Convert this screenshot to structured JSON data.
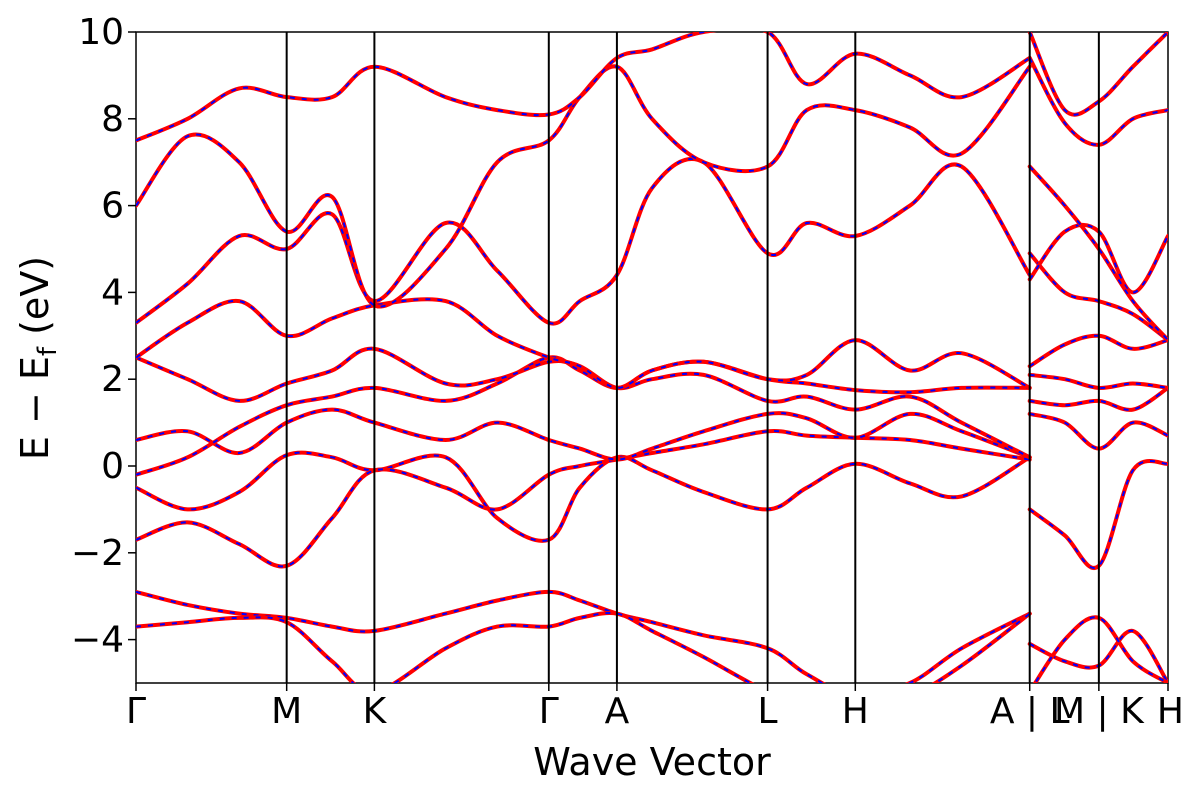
{
  "chart_data": {
    "type": "line",
    "title": "",
    "xlabel": "Wave Vector",
    "ylabel": {
      "main": "E − E",
      "subscript": "f",
      "unit": " (eV)"
    },
    "ylim": [
      -5,
      10
    ],
    "yticks": [
      10,
      8,
      6,
      4,
      2,
      0,
      -2,
      -4
    ],
    "ytick_labels": [
      "10",
      "8",
      "6",
      "4",
      "2",
      "0",
      "−2",
      "−4"
    ],
    "xlim": [
      0,
      1
    ],
    "kpoint_positions": [
      0,
      0.146,
      0.231,
      0.4,
      0.466,
      0.612,
      0.697,
      0.866,
      0.933,
      1
    ],
    "xtick_labels": [
      {
        "x": 0,
        "label": "Γ"
      },
      {
        "x": 0.146,
        "label": "M"
      },
      {
        "x": 0.231,
        "label": "K"
      },
      {
        "x": 0.4,
        "label": "Γ"
      },
      {
        "x": 0.466,
        "label": "A"
      },
      {
        "x": 0.612,
        "label": "L"
      },
      {
        "x": 0.697,
        "label": "H"
      },
      {
        "x": 0.866,
        "label": "A | L"
      },
      {
        "x": 0.933,
        "label": "M | K"
      },
      {
        "x": 1,
        "label": "H"
      }
    ],
    "grid": false,
    "legend": null,
    "series_colors": {
      "band_a": "#ff0000",
      "band_b": "#0000ff"
    },
    "series": [
      {
        "x": [
          0,
          0.05,
          0.1,
          0.146,
          0.19,
          0.231,
          0.3,
          0.35,
          0.4,
          0.43,
          0.466,
          0.5,
          0.55,
          0.612,
          0.65,
          0.697,
          0.75,
          0.8,
          0.866
        ],
        "values": [
          -0.5,
          -1.0,
          -0.6,
          0.25,
          0.2,
          -0.1,
          0.2,
          -1.2,
          -1.7,
          -0.5,
          0.2,
          -0.1,
          -0.6,
          -1.0,
          -0.5,
          0.05,
          -0.4,
          -0.7,
          0.2
        ]
      },
      {
        "x": [
          0,
          0.05,
          0.1,
          0.146,
          0.19,
          0.231,
          0.3,
          0.35,
          0.4,
          0.43,
          0.466,
          0.5,
          0.55,
          0.612,
          0.65,
          0.697,
          0.75,
          0.8,
          0.866
        ],
        "values": [
          -1.7,
          -1.3,
          -1.8,
          -2.3,
          -1.2,
          -0.1,
          -0.5,
          -1.0,
          -0.2,
          0.0,
          0.15,
          0.3,
          0.5,
          0.8,
          0.7,
          0.65,
          0.6,
          0.4,
          0.15
        ]
      },
      {
        "x": [
          0,
          0.05,
          0.1,
          0.146,
          0.19,
          0.231,
          0.3,
          0.35,
          0.4,
          0.43,
          0.466,
          0.5,
          0.55,
          0.612,
          0.65,
          0.697,
          0.75,
          0.8,
          0.866
        ],
        "values": [
          0.6,
          0.8,
          0.3,
          1.0,
          1.3,
          1.0,
          0.6,
          1.0,
          0.6,
          0.4,
          0.15,
          0.4,
          0.8,
          1.2,
          1.1,
          0.65,
          1.2,
          0.8,
          0.2
        ]
      },
      {
        "x": [
          0,
          0.05,
          0.1,
          0.146,
          0.19,
          0.231,
          0.3,
          0.35,
          0.4,
          0.43,
          0.466,
          0.5,
          0.55,
          0.612,
          0.65,
          0.697,
          0.75,
          0.8,
          0.866
        ],
        "values": [
          -0.2,
          0.2,
          0.9,
          1.4,
          1.6,
          1.8,
          1.5,
          1.9,
          2.5,
          2.2,
          1.8,
          2.2,
          2.4,
          2.0,
          1.9,
          1.75,
          1.7,
          1.8,
          1.8
        ]
      },
      {
        "x": [
          0,
          0.05,
          0.1,
          0.146,
          0.19,
          0.231,
          0.3,
          0.35,
          0.4,
          0.43,
          0.466,
          0.5,
          0.55,
          0.612,
          0.65,
          0.697,
          0.75,
          0.8,
          0.866
        ],
        "values": [
          2.5,
          2.0,
          1.5,
          1.9,
          2.2,
          2.7,
          1.9,
          2.0,
          2.4,
          2.3,
          1.8,
          2.0,
          2.1,
          1.5,
          1.6,
          1.3,
          1.6,
          1.0,
          0.2
        ]
      },
      {
        "x": [
          0,
          0.05,
          0.1,
          0.146,
          0.19,
          0.231,
          0.3,
          0.35,
          0.4,
          0.43,
          0.466,
          0.5,
          0.55,
          0.612,
          0.65,
          0.697,
          0.75,
          0.8,
          0.866
        ],
        "values": [
          3.3,
          4.2,
          5.3,
          5.0,
          5.8,
          3.8,
          5.6,
          4.5,
          3.3,
          3.8,
          4.4,
          6.4,
          7.0,
          4.9,
          5.6,
          5.3,
          6.0,
          6.9,
          4.4
        ]
      },
      {
        "x": [
          0,
          0.05,
          0.1,
          0.146,
          0.19,
          0.231,
          0.3,
          0.35,
          0.4,
          0.43,
          0.466,
          0.5,
          0.55,
          0.612,
          0.65,
          0.697,
          0.75,
          0.8,
          0.866
        ],
        "values": [
          2.5,
          3.3,
          3.8,
          3.0,
          3.4,
          3.7,
          3.8,
          3.0,
          2.5,
          2.3,
          1.8,
          2.2,
          2.4,
          2.0,
          2.1,
          2.9,
          2.2,
          2.6,
          1.8
        ]
      },
      {
        "x": [
          0,
          0.05,
          0.1,
          0.146,
          0.19,
          0.231,
          0.3,
          0.35,
          0.4,
          0.43,
          0.466,
          0.5,
          0.55,
          0.612,
          0.65,
          0.697,
          0.75,
          0.8,
          0.866
        ],
        "values": [
          6.0,
          7.6,
          7.0,
          5.4,
          6.2,
          3.7,
          5.0,
          7.0,
          7.5,
          8.5,
          9.2,
          8.0,
          7.0,
          6.9,
          8.2,
          8.2,
          7.8,
          7.2,
          9.2
        ]
      },
      {
        "x": [
          0,
          0.05,
          0.1,
          0.146,
          0.19,
          0.231,
          0.3,
          0.35,
          0.4,
          0.43,
          0.466,
          0.5,
          0.55,
          0.612,
          0.65,
          0.697,
          0.75,
          0.8,
          0.866
        ],
        "values": [
          7.5,
          8.0,
          8.7,
          8.5,
          8.5,
          9.2,
          8.5,
          8.2,
          8.1,
          8.5,
          9.4,
          9.6,
          10.0,
          10.0,
          8.8,
          9.5,
          9.0,
          8.5,
          9.4
        ]
      },
      {
        "x": [
          0,
          0.05,
          0.1,
          0.146,
          0.19,
          0.231,
          0.3,
          0.35,
          0.4,
          0.43,
          0.466,
          0.5,
          0.55,
          0.612,
          0.65,
          0.697,
          0.75,
          0.8,
          0.866
        ],
        "values": [
          -2.9,
          -3.2,
          -3.4,
          -3.5,
          -3.7,
          -3.8,
          -3.4,
          -3.1,
          -2.9,
          -3.1,
          -3.4,
          -3.6,
          -3.9,
          -4.2,
          -4.8,
          -5.3,
          -5.0,
          -4.2,
          -3.4
        ]
      },
      {
        "x": [
          0,
          0.05,
          0.1,
          0.146,
          0.19,
          0.231,
          0.3,
          0.35,
          0.4,
          0.43,
          0.466,
          0.5,
          0.55,
          0.612,
          0.65,
          0.697,
          0.75,
          0.8,
          0.866
        ],
        "values": [
          -3.7,
          -3.6,
          -3.5,
          -3.6,
          -4.5,
          -5.2,
          -4.2,
          -3.7,
          -3.7,
          -3.5,
          -3.4,
          -3.8,
          -4.4,
          -5.2,
          -5.4,
          -5.6,
          -5.3,
          -4.6,
          -3.4
        ]
      },
      {
        "x": [
          0.866,
          0.9,
          0.933,
          0.966,
          1
        ],
        "values": [
          -1.0,
          -1.6,
          -2.3,
          -0.1,
          0.05
        ]
      },
      {
        "x": [
          0.866,
          0.9,
          0.933,
          0.966,
          1
        ],
        "values": [
          1.2,
          1.0,
          0.4,
          1.0,
          0.7
        ]
      },
      {
        "x": [
          0.866,
          0.9,
          0.933,
          0.966,
          1
        ],
        "values": [
          1.5,
          1.4,
          1.5,
          1.3,
          1.8
        ]
      },
      {
        "x": [
          0.866,
          0.9,
          0.933,
          0.966,
          1
        ],
        "values": [
          2.1,
          2.0,
          1.8,
          1.9,
          1.8
        ]
      },
      {
        "x": [
          0.866,
          0.9,
          0.933,
          0.966,
          1
        ],
        "values": [
          2.3,
          2.8,
          3.0,
          2.7,
          2.9
        ]
      },
      {
        "x": [
          0.866,
          0.9,
          0.933,
          0.966,
          1
        ],
        "values": [
          4.9,
          4.0,
          3.8,
          3.5,
          2.9
        ]
      },
      {
        "x": [
          0.866,
          0.9,
          0.933,
          0.966,
          1
        ],
        "values": [
          4.3,
          5.4,
          5.4,
          4.0,
          5.3
        ]
      },
      {
        "x": [
          0.866,
          0.9,
          0.933,
          0.966,
          1
        ],
        "values": [
          6.9,
          6.0,
          5.0,
          3.8,
          2.9
        ]
      },
      {
        "x": [
          0.866,
          0.9,
          0.933,
          0.966,
          1
        ],
        "values": [
          9.4,
          7.9,
          7.4,
          8.0,
          8.2
        ]
      },
      {
        "x": [
          0.866,
          0.9,
          0.933,
          0.966,
          1
        ],
        "values": [
          10.0,
          8.2,
          8.4,
          9.2,
          10.0
        ]
      },
      {
        "x": [
          0.866,
          0.9,
          0.933,
          0.966,
          1
        ],
        "values": [
          -4.1,
          -4.5,
          -4.6,
          -3.8,
          -5.0
        ]
      },
      {
        "x": [
          0.866,
          0.9,
          0.933,
          0.966,
          1
        ],
        "values": [
          -5.2,
          -4.0,
          -3.5,
          -4.5,
          -5.0
        ]
      }
    ]
  }
}
